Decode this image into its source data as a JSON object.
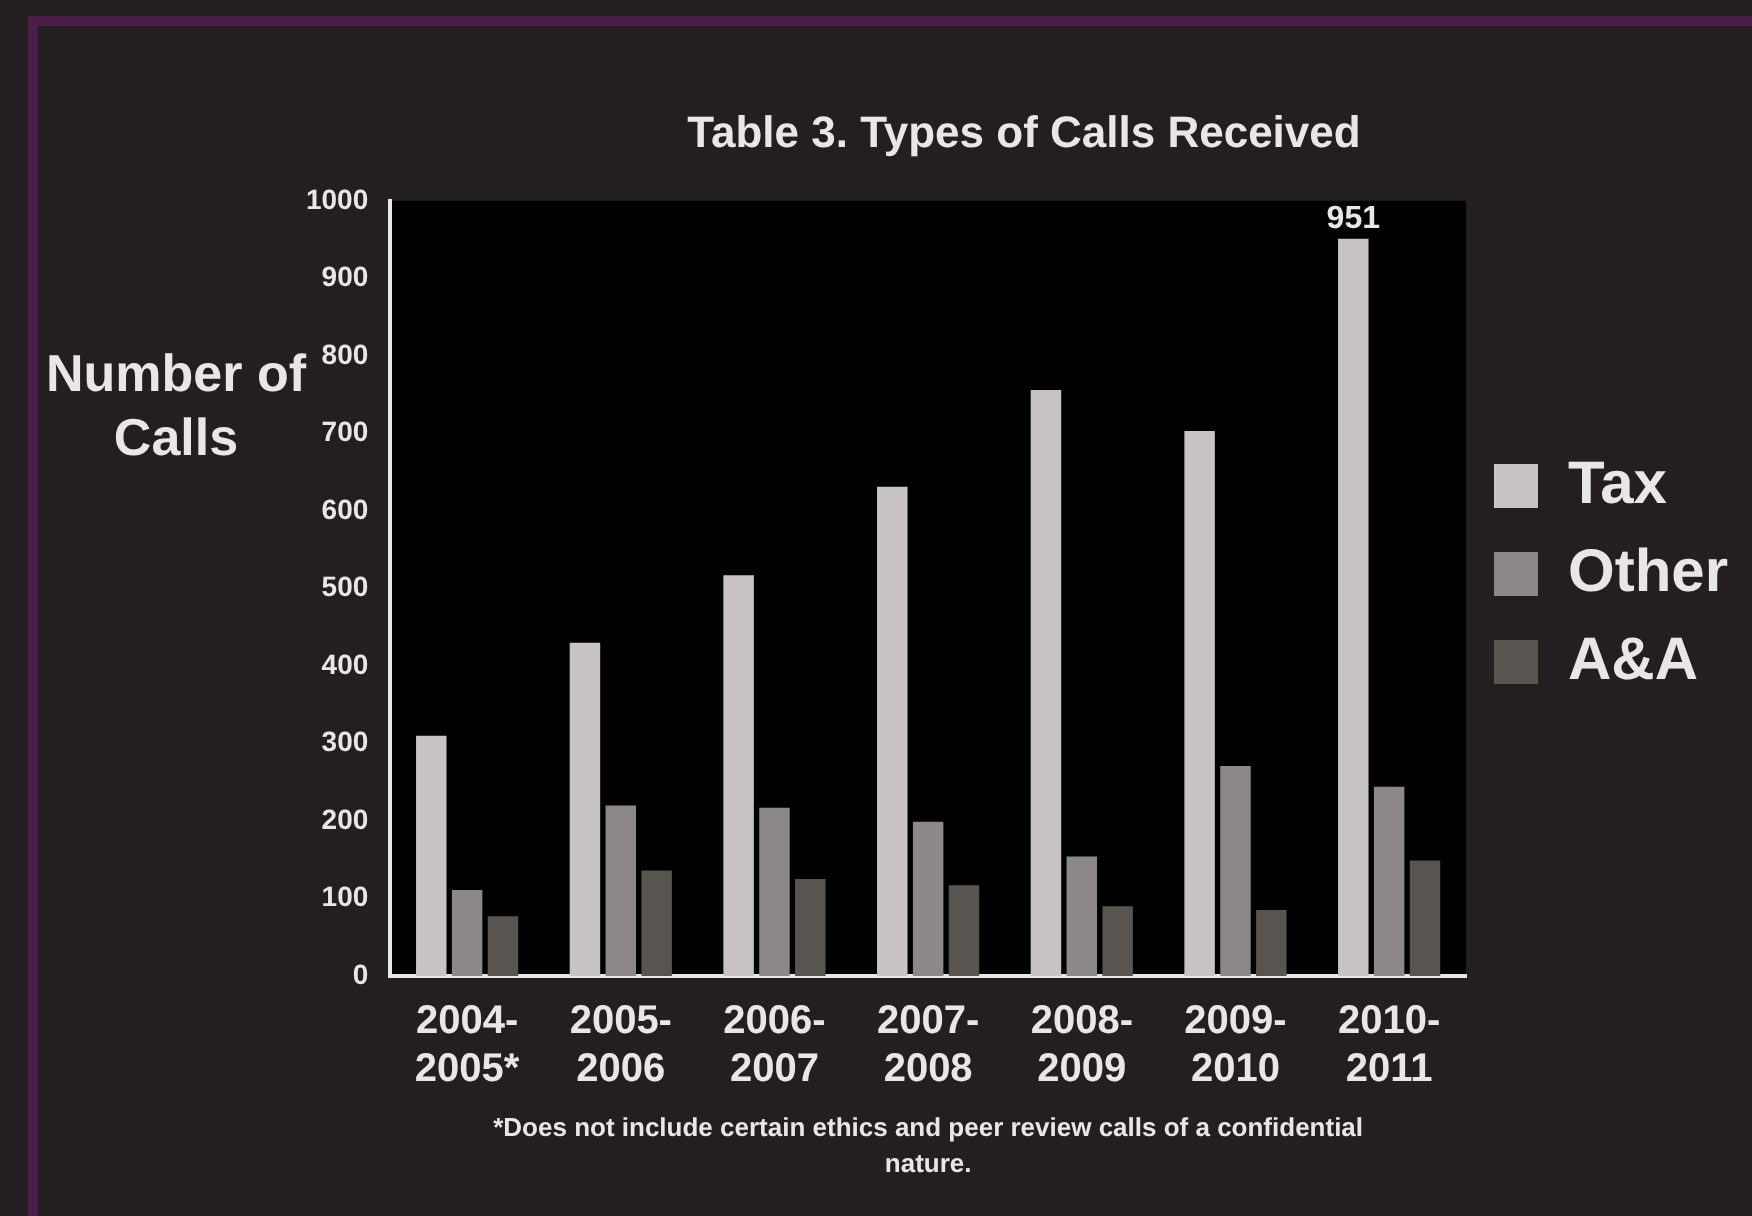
{
  "chart_data": {
    "type": "bar",
    "title": "Table 3. Types of Calls Received",
    "ylabel": "Number of Calls",
    "categories": [
      "2004-\n2005*",
      "2005-\n2006",
      "2006-\n2007",
      "2007-\n2008",
      "2008-\n2009",
      "2009-\n2010",
      "2010-\n2011"
    ],
    "series": [
      {
        "name": "Tax",
        "color": "#c8c4c5",
        "values": [
          310,
          430,
          517,
          631,
          756,
          703,
          951
        ],
        "value_labels": [
          null,
          null,
          null,
          null,
          null,
          null,
          "951"
        ]
      },
      {
        "name": "Other",
        "color": "#8c8889",
        "values": [
          111,
          220,
          217,
          199,
          154,
          271,
          244
        ]
      },
      {
        "name": "A&A",
        "color": "#58544f",
        "values": [
          77,
          136,
          125,
          117,
          90,
          85,
          149
        ]
      }
    ],
    "ylim": [
      0,
      1000
    ],
    "yticks": [
      0,
      100,
      200,
      300,
      400,
      500,
      600,
      700,
      800,
      900,
      1000
    ],
    "grid": false,
    "legend": "right",
    "annotations": [
      "*Does not include certain ethics and peer review calls of a confidential nature."
    ]
  }
}
